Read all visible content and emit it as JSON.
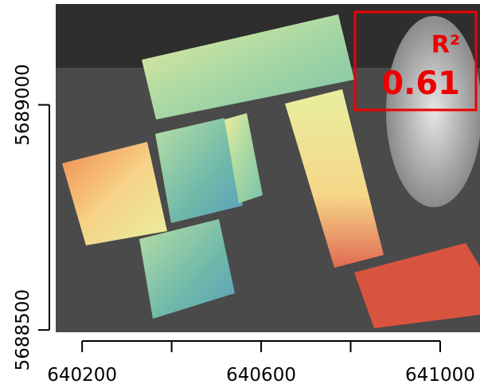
{
  "chart_data": {
    "type": "raster-map",
    "xlim": [
      640141,
      641089
    ],
    "ylim": [
      5688495,
      5689224
    ],
    "xticks": [
      640200,
      640600,
      641000
    ],
    "xminor_ticks": [
      640400,
      640800
    ],
    "yticks": [
      5688500,
      5689000
    ],
    "annotation": {
      "title": "R²",
      "text": "0.61",
      "color": "#ee0000"
    }
  }
}
